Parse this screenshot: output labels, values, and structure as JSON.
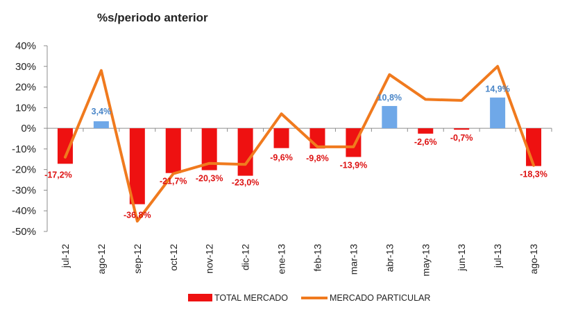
{
  "chart_data": {
    "type": "bar",
    "title": "%s/periodo anterior",
    "categories": [
      "jul-12",
      "ago-12",
      "sep-12",
      "oct-12",
      "nov-12",
      "dic-12",
      "ene-13",
      "feb-13",
      "mar-13",
      "abr-13",
      "may-13",
      "jun-13",
      "jul-13",
      "ago-13"
    ],
    "y_ticks": [
      "40%",
      "30%",
      "20%",
      "10%",
      "0%",
      "-10%",
      "-20%",
      "-30%",
      "-40%",
      "-50%"
    ],
    "ylim": [
      -50,
      40
    ],
    "grid": false,
    "legend_position": "bottom",
    "series": [
      {
        "name": "TOTAL MERCADO",
        "kind": "bar",
        "color": "#ee1111",
        "positive_color": "#6fa8e8",
        "values": [
          -17.2,
          3.4,
          -36.8,
          -21.7,
          -20.3,
          -23.0,
          -9.6,
          -9.8,
          -13.9,
          10.8,
          -2.6,
          -0.7,
          14.9,
          -18.3
        ],
        "labels": [
          "-17,2%",
          "3,4%",
          "-36,8%",
          "-21,7%",
          "-20,3%",
          "-23,0%",
          "-9,6%",
          "-9,8%",
          "-13,9%",
          "10,8%",
          "-2,6%",
          "-0,7%",
          "14,9%",
          "-18,3%"
        ]
      },
      {
        "name": "MERCADO PARTICULAR",
        "kind": "line",
        "color": "#f07a1e",
        "values": [
          -14,
          28,
          -45,
          -22,
          -17,
          -17.5,
          7,
          -9,
          -9,
          26,
          14,
          13.5,
          30,
          -18
        ]
      }
    ],
    "label_colors": {
      "negative": "#dd1111",
      "positive": "#4a86c8"
    }
  }
}
